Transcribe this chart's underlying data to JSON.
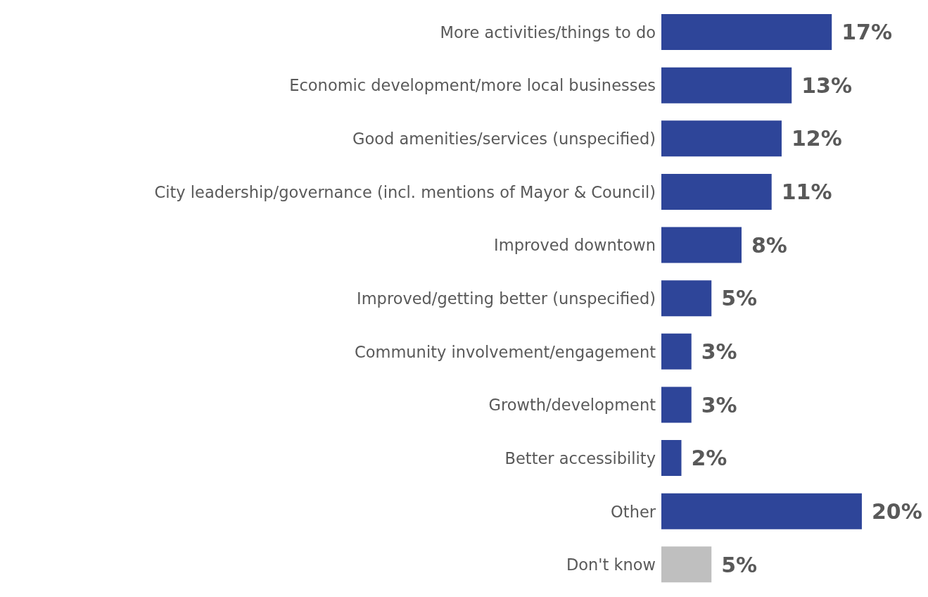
{
  "chart_data": {
    "type": "bar",
    "orientation": "horizontal",
    "categories": [
      "More activities/things to do",
      "Economic development/more local businesses",
      "Good amenities/services (unspecified)",
      "City leadership/governance (incl. mentions of Mayor & Council)",
      "Improved downtown",
      "Improved/getting better (unspecified)",
      "Community involvement/engagement",
      "Growth/development",
      "Better accessibility",
      "Other",
      "Don't know"
    ],
    "values": [
      17,
      13,
      12,
      11,
      8,
      5,
      3,
      3,
      2,
      20,
      5
    ],
    "colors": [
      "#2e4599",
      "#2e4599",
      "#2e4599",
      "#2e4599",
      "#2e4599",
      "#2e4599",
      "#2e4599",
      "#2e4599",
      "#2e4599",
      "#2e4599",
      "#bfbfbf"
    ],
    "value_labels": [
      "17%",
      "13%",
      "12%",
      "11%",
      "8%",
      "5%",
      "3%",
      "3%",
      "2%",
      "20%",
      "5%"
    ],
    "grid": false,
    "legend": false
  }
}
